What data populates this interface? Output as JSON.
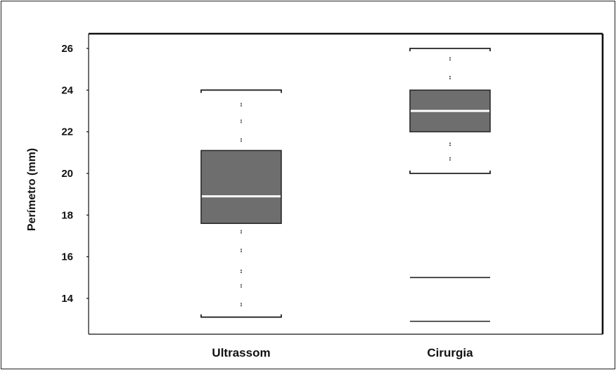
{
  "chart_data": {
    "type": "boxplot",
    "title": "",
    "xlabel": "",
    "ylabel": "Perímetro (mm)",
    "ylim": [
      12.5,
      26.6
    ],
    "yticks": [
      14,
      16,
      18,
      20,
      22,
      24,
      26
    ],
    "grid": false,
    "legend": "none",
    "categories": [
      "Ultrassom",
      "Cirurgia"
    ],
    "series": [
      {
        "category": "Ultrassom",
        "whisker_low": 13.1,
        "q1": 17.6,
        "median": 18.9,
        "q3": 21.1,
        "whisker_high": 24.0,
        "points": [
          13.7,
          14.6,
          15.3,
          16.3,
          17.2,
          21.6,
          22.5,
          23.3
        ]
      },
      {
        "category": "Cirurgia",
        "whisker_low": 20.0,
        "q1": 22.0,
        "median": 23.0,
        "q3": 24.0,
        "whisker_high": 26.0,
        "points": [
          20.7,
          21.4,
          24.6,
          25.5
        ]
      }
    ],
    "reference_lines": [
      15.0,
      12.9
    ],
    "colors": {
      "box_fill": "#6e6e6e",
      "box_stroke": "#222222",
      "median": "#ffffff",
      "whisker": "#222222",
      "points": "#666666",
      "axis": "#111111"
    }
  }
}
